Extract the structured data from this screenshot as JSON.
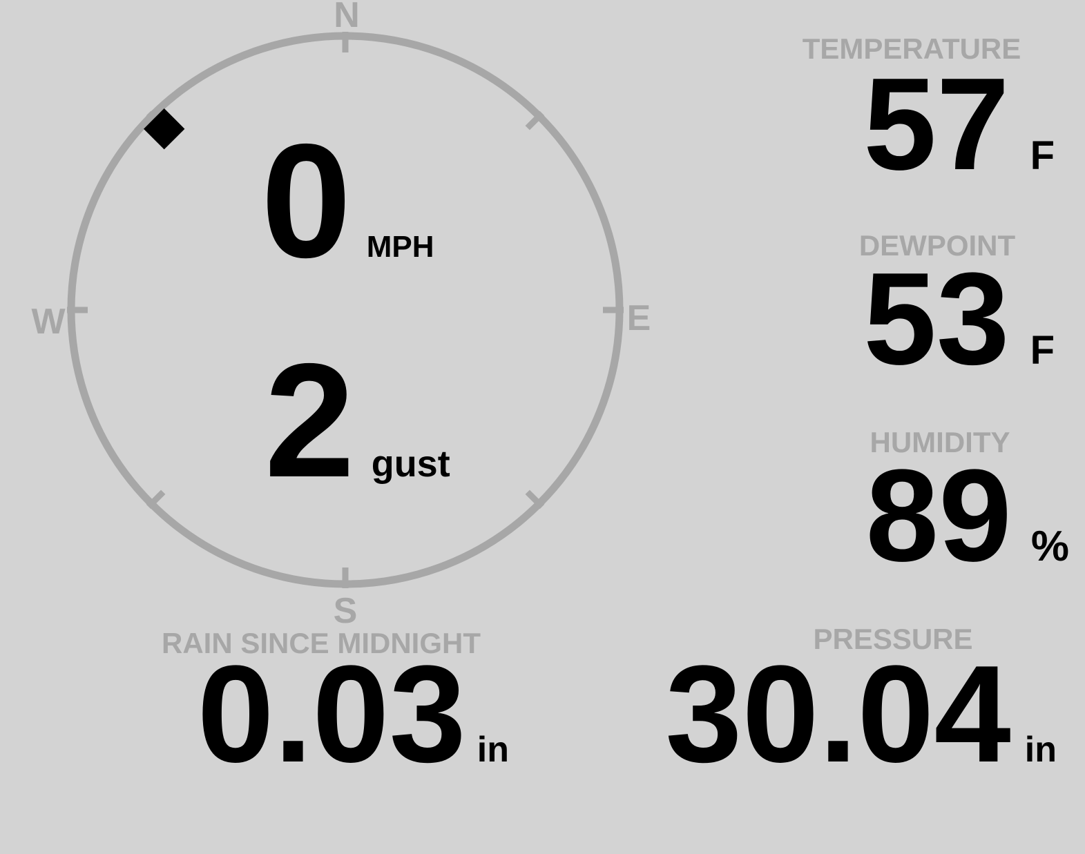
{
  "colors": {
    "background": "#d3d3d3",
    "muted_gray": "#a7a7a7",
    "text_black": "#000000"
  },
  "wind": {
    "compass_labels": {
      "north": "N",
      "east": "E",
      "south": "S",
      "west": "W"
    },
    "direction_deg": 315,
    "speed": {
      "value": "0",
      "unit": "MPH"
    },
    "gust": {
      "value": "2",
      "unit": "gust"
    }
  },
  "metrics": {
    "temperature": {
      "label": "TEMPERATURE",
      "value": "57",
      "unit": "F"
    },
    "dewpoint": {
      "label": "DEWPOINT",
      "value": "53",
      "unit": "F"
    },
    "humidity": {
      "label": "HUMIDITY",
      "value": "89",
      "unit": "%"
    },
    "rain_since_midnight": {
      "label": "RAIN SINCE MIDNIGHT",
      "value": "0.03",
      "unit": "in"
    },
    "pressure": {
      "label": "PRESSURE",
      "value": "30.04",
      "unit": "in"
    }
  }
}
